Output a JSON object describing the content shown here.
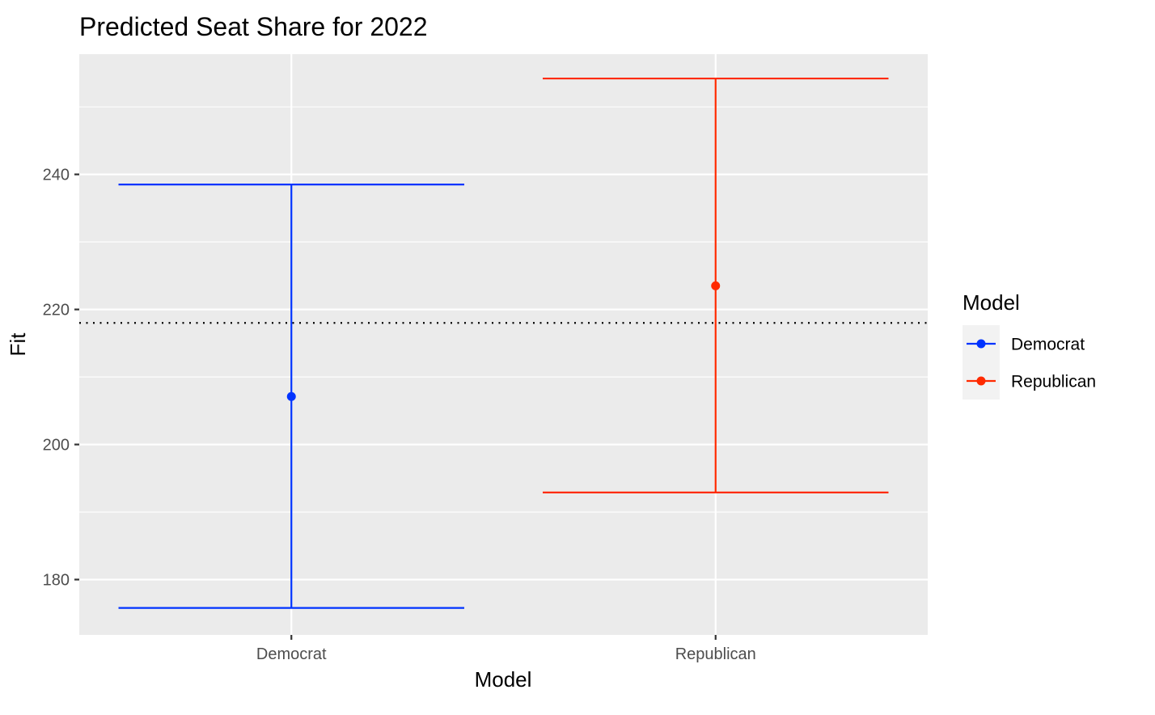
{
  "chart_data": {
    "type": "errorbar",
    "title": "Predicted Seat Share for 2022",
    "xlabel": "Model",
    "ylabel": "Fit",
    "categories": [
      "Democrat",
      "Republican"
    ],
    "series": [
      {
        "name": "Democrat",
        "fit": 207.1,
        "lower": 175.8,
        "upper": 238.5,
        "color": "#0033ff"
      },
      {
        "name": "Republican",
        "fit": 223.5,
        "lower": 192.9,
        "upper": 254.2,
        "color": "#ff2a00"
      }
    ],
    "yticks": [
      180,
      200,
      220,
      240
    ],
    "ylim": [
      171.8,
      257.8
    ],
    "reference_line": {
      "y": 218,
      "style": "dotted",
      "color": "#000000"
    },
    "grid": true,
    "panel_background": "#ebebeb",
    "legend": {
      "title": "Model",
      "position": "right",
      "entries": [
        "Democrat",
        "Republican"
      ]
    }
  }
}
